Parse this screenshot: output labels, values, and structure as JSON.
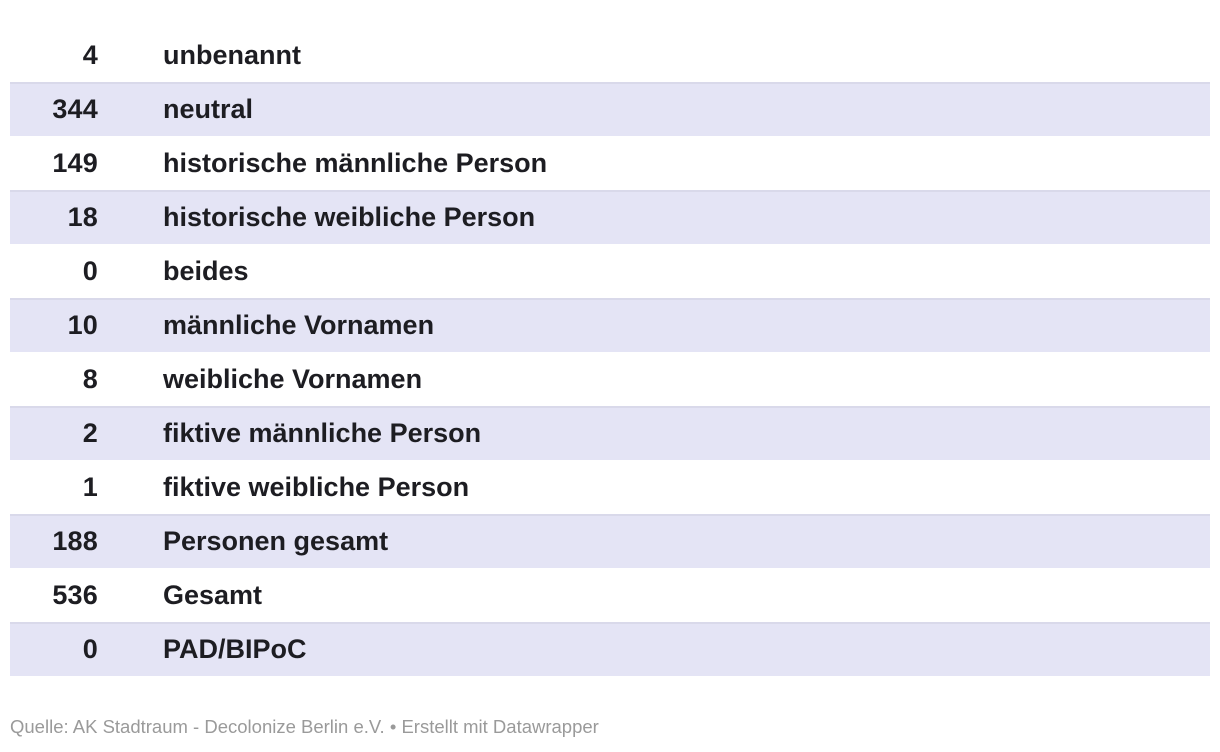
{
  "chart_data": {
    "type": "table",
    "rows": [
      {
        "value": "4",
        "label": "unbenannt"
      },
      {
        "value": "344",
        "label": "neutral"
      },
      {
        "value": "149",
        "label": "historische männliche Person"
      },
      {
        "value": "18",
        "label": "historische weibliche Person"
      },
      {
        "value": "0",
        "label": "beides"
      },
      {
        "value": "10",
        "label": "männliche Vornamen"
      },
      {
        "value": "8",
        "label": "weibliche Vornamen"
      },
      {
        "value": "2",
        "label": "fiktive männliche Person"
      },
      {
        "value": "1",
        "label": "fiktive weibliche Person"
      },
      {
        "value": "188",
        "label": "Personen gesamt"
      },
      {
        "value": "536",
        "label": "Gesamt"
      },
      {
        "value": "0",
        "label": "PAD/BIPoC"
      }
    ],
    "title": "",
    "source": "AK Stadtraum - Decolonize Berlin e.V.",
    "credit": "Erstellt mit Datawrapper",
    "layout_hints": {
      "striped_rows": true,
      "stripe_on_even_rows": true,
      "value_column_align": "right",
      "header_visible": false
    }
  },
  "footer": {
    "source_label": "Quelle:",
    "source_name": "AK Stadtraum - Decolonize Berlin e.V.",
    "separator": "•",
    "credit_prefix": "Erstellt mit",
    "credit_link": "Datawrapper"
  },
  "colors": {
    "row_alt_background": "#e4e4f5",
    "row_alt_border": "#d9d9ea",
    "text": "#1d1d22",
    "footer_text": "#9a9a9a",
    "page_background": "#ffffff"
  }
}
